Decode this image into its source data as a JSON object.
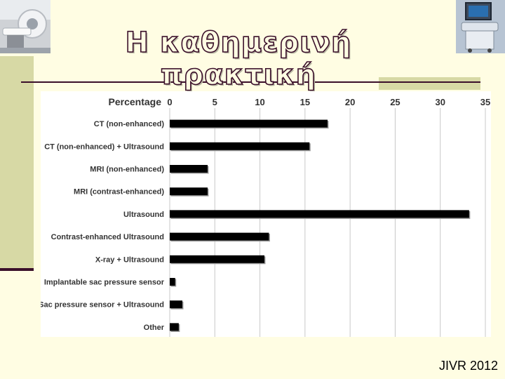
{
  "slide": {
    "title": "Η καθημερινή πρακτική",
    "footer": "JIVR 2012",
    "colors": {
      "background": "#fffde3",
      "accent": "#3a0f2a",
      "band": "#d7d9a5",
      "bar": "#000000"
    },
    "images": [
      "ct-scanner-photo",
      "ultrasound-machine-photo"
    ]
  },
  "chart_data": {
    "type": "bar",
    "orientation": "horizontal",
    "title": "",
    "xlabel": "Percentage",
    "ylabel": "",
    "xlim": [
      0,
      35
    ],
    "xticks": [
      0,
      5,
      10,
      15,
      20,
      25,
      30,
      35
    ],
    "grid": true,
    "legend": "none",
    "categories": [
      "CT (non-enhanced)",
      "CT (non-enhanced) + Ultrasound",
      "MRI (non-enhanced)",
      "MRI (contrast-enhanced)",
      "Ultrasound",
      "Contrast-enhanced Ultrasound",
      "X-ray + Ultrasound",
      "Implantable sac pressure sensor",
      "Sac pressure sensor + Ultrasound",
      "Other"
    ],
    "values": [
      17.5,
      15.5,
      4.2,
      4.2,
      33.2,
      11,
      10.5,
      0.6,
      1.4,
      1
    ]
  }
}
